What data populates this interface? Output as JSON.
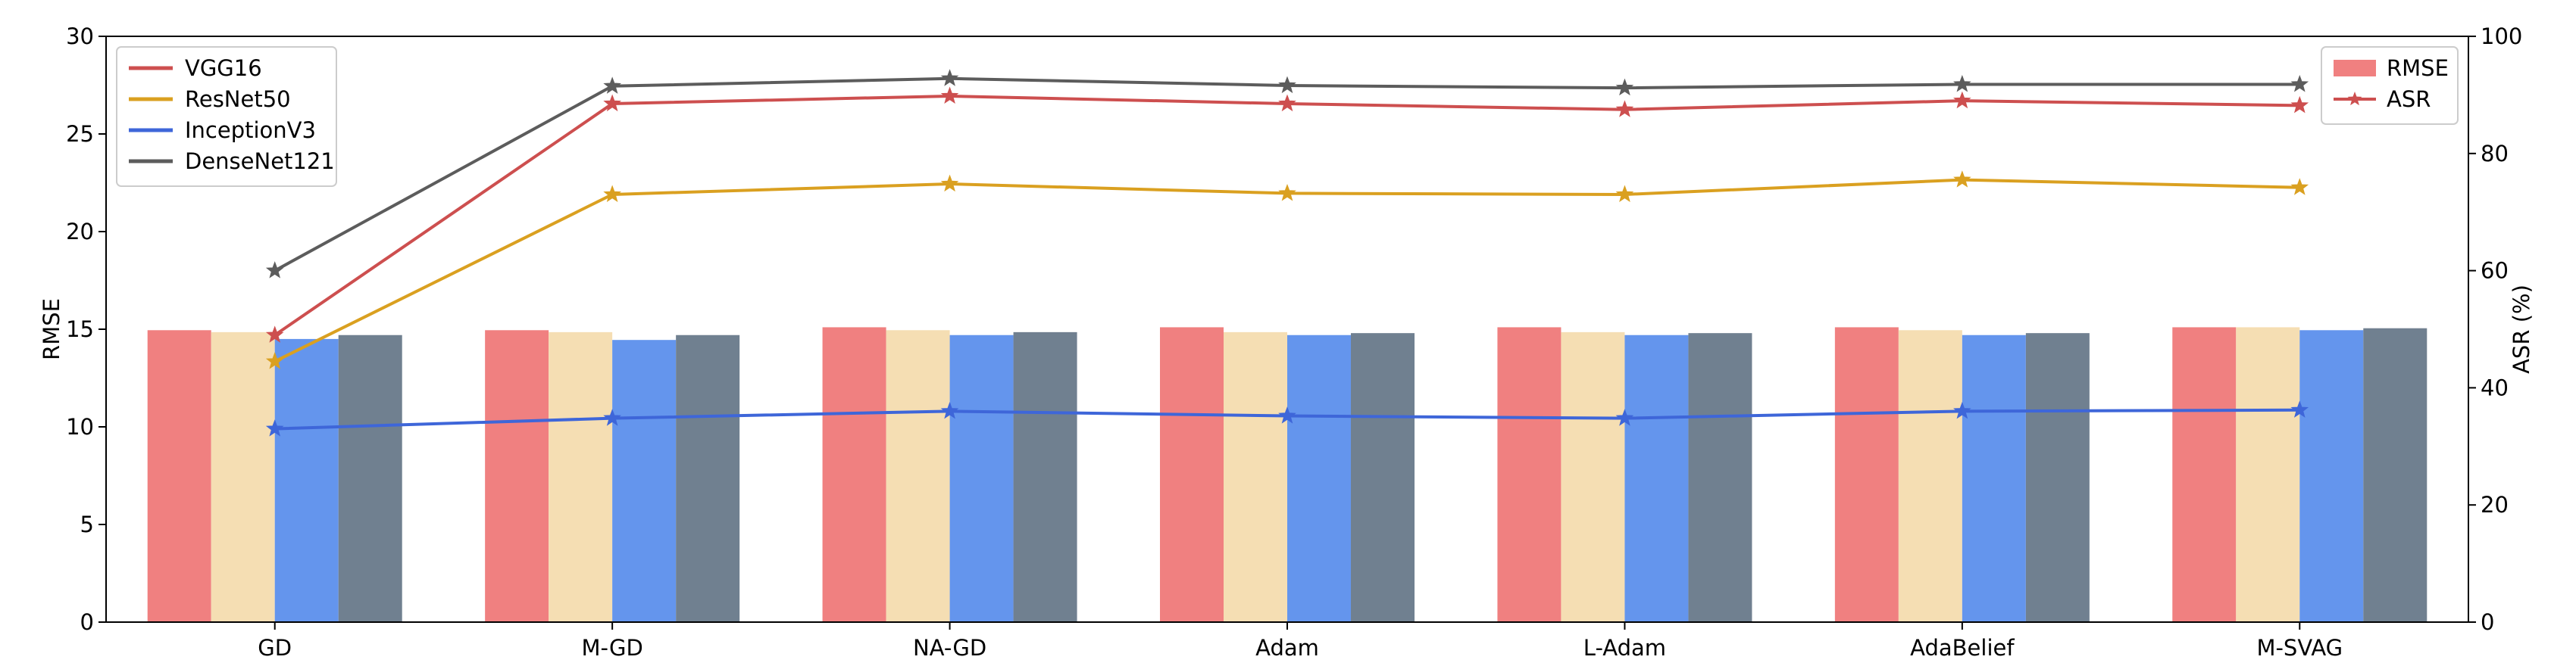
{
  "chart_data": {
    "type": "bar",
    "title": "",
    "xlabel": "",
    "ylabel": "RMSE",
    "y2label": "ASR (%)",
    "ylim": [
      0,
      30
    ],
    "y2lim": [
      0,
      100
    ],
    "yticks": [
      0,
      5,
      10,
      15,
      20,
      25,
      30
    ],
    "y2ticks": [
      0,
      20,
      40,
      60,
      80,
      100
    ],
    "grid": false,
    "categories": [
      "GD",
      "M-GD",
      "NA-GD",
      "Adam",
      "L-Adam",
      "AdaBelief",
      "M-SVAG"
    ],
    "bar_series": [
      {
        "name": "VGG16",
        "color": "#f08080",
        "values": [
          14.95,
          14.95,
          15.1,
          15.1,
          15.1,
          15.1,
          15.1
        ]
      },
      {
        "name": "ResNet50",
        "color": "#f5deb3",
        "values": [
          14.85,
          14.85,
          14.95,
          14.85,
          14.85,
          14.95,
          15.1
        ]
      },
      {
        "name": "InceptionV3",
        "color": "#6495ed",
        "values": [
          14.5,
          14.45,
          14.7,
          14.7,
          14.7,
          14.7,
          14.95
        ]
      },
      {
        "name": "DenseNet121",
        "color": "#708090",
        "values": [
          14.7,
          14.7,
          14.85,
          14.8,
          14.8,
          14.8,
          15.05
        ]
      }
    ],
    "line_series": [
      {
        "name": "VGG16",
        "color": "#cd4f4f",
        "values": [
          49,
          88.5,
          89.8,
          88.5,
          87.5,
          89,
          88.2
        ]
      },
      {
        "name": "ResNet50",
        "color": "#daa020",
        "values": [
          44.5,
          73,
          74.8,
          73.2,
          73,
          75.5,
          74.2
        ]
      },
      {
        "name": "InceptionV3",
        "color": "#3e66d9",
        "values": [
          33,
          34.8,
          36,
          35.2,
          34.8,
          36,
          36.2
        ]
      },
      {
        "name": "DenseNet121",
        "color": "#5c5c5c",
        "values": [
          60,
          91.5,
          92.8,
          91.6,
          91.2,
          91.8,
          91.8
        ]
      }
    ],
    "legend_models": {
      "position": "top-left",
      "entries": [
        "VGG16",
        "ResNet50",
        "InceptionV3",
        "DenseNet121"
      ]
    },
    "legend_metrics": {
      "position": "top-right",
      "entries": [
        {
          "label": "RMSE",
          "kind": "bar",
          "color": "#f08080"
        },
        {
          "label": "ASR",
          "kind": "line-star",
          "color": "#cd4f4f"
        }
      ]
    }
  }
}
